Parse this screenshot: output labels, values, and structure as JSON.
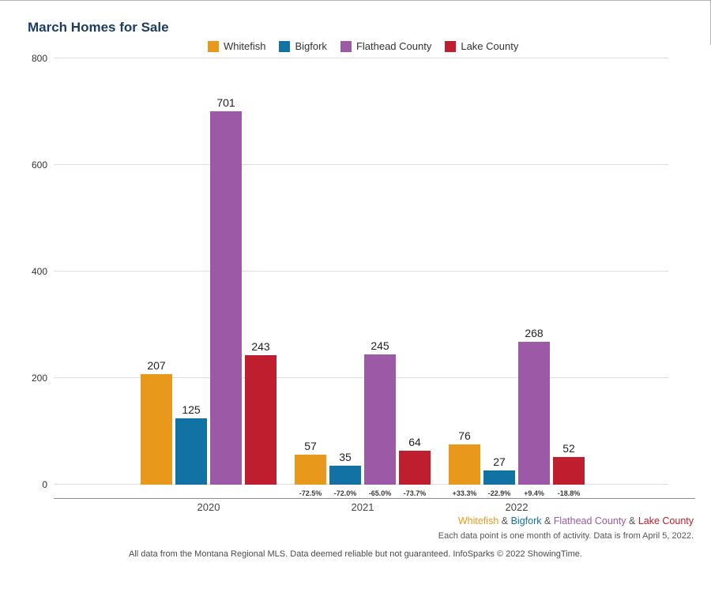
{
  "chart_data": {
    "type": "bar",
    "title": "March Homes for Sale",
    "categories": [
      "2020",
      "2021",
      "2022"
    ],
    "series": [
      {
        "name": "Whitefish",
        "color": "#E8991C",
        "values": [
          207,
          57,
          76
        ],
        "pct_change": [
          null,
          "-72.5%",
          "+33.3%"
        ]
      },
      {
        "name": "Bigfork",
        "color": "#1272A3",
        "values": [
          125,
          35,
          27
        ],
        "pct_change": [
          null,
          "-72.0%",
          "-22.9%"
        ]
      },
      {
        "name": "Flathead County",
        "color": "#9C59A5",
        "values": [
          701,
          245,
          268
        ],
        "pct_change": [
          null,
          "-65.0%",
          "+9.4%"
        ]
      },
      {
        "name": "Lake County",
        "color": "#BE1E2D",
        "values": [
          243,
          64,
          52
        ],
        "pct_change": [
          null,
          "-73.7%",
          "-18.8%"
        ]
      }
    ],
    "ylim": [
      0,
      800
    ],
    "yticks": [
      0,
      200,
      400,
      600,
      800
    ],
    "grid": true,
    "legend_position": "top"
  },
  "footer": {
    "separator": "&",
    "note1": "Each data point is one month of activity. Data is from April 5, 2022.",
    "note2": "All data from the Montana Regional MLS. Data deemed reliable but not guaranteed. InfoSparks © 2022 ShowingTime."
  }
}
